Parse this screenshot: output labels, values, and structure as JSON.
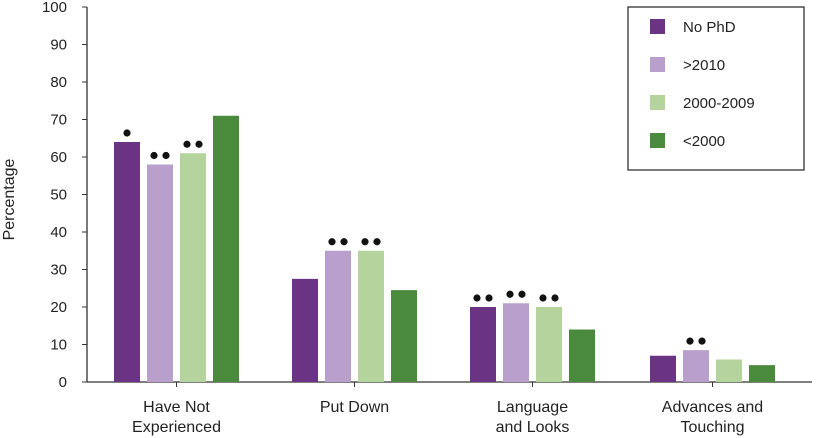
{
  "chart_data": {
    "type": "bar",
    "title": "",
    "xlabel": "",
    "ylabel": "Percentage",
    "ylim": [
      0,
      100
    ],
    "yticks": [
      0,
      10,
      20,
      30,
      40,
      50,
      60,
      70,
      80,
      90,
      100
    ],
    "grid": false,
    "legend_position": "top-right",
    "categories": [
      [
        "Have Not",
        "Experienced"
      ],
      [
        "Put Down"
      ],
      [
        "Language",
        "and Looks"
      ],
      [
        "Advances and",
        "Touching"
      ]
    ],
    "series": [
      {
        "name": "No PhD",
        "color": "#6a3384",
        "values": [
          64,
          27.5,
          20,
          7
        ],
        "markers": [
          1,
          0,
          2,
          0
        ]
      },
      {
        "name": ">2010",
        "color": "#b9a0cc",
        "values": [
          58,
          35,
          21,
          8.5
        ],
        "markers": [
          2,
          2,
          2,
          2
        ]
      },
      {
        "name": "2000-2009",
        "color": "#b5d49d",
        "values": [
          61,
          35,
          20,
          6
        ],
        "markers": [
          2,
          2,
          2,
          0
        ]
      },
      {
        "name": "<2000",
        "color": "#4a8a3c",
        "values": [
          71,
          24.5,
          14,
          4.5
        ],
        "markers": [
          0,
          0,
          0,
          0
        ]
      }
    ]
  }
}
